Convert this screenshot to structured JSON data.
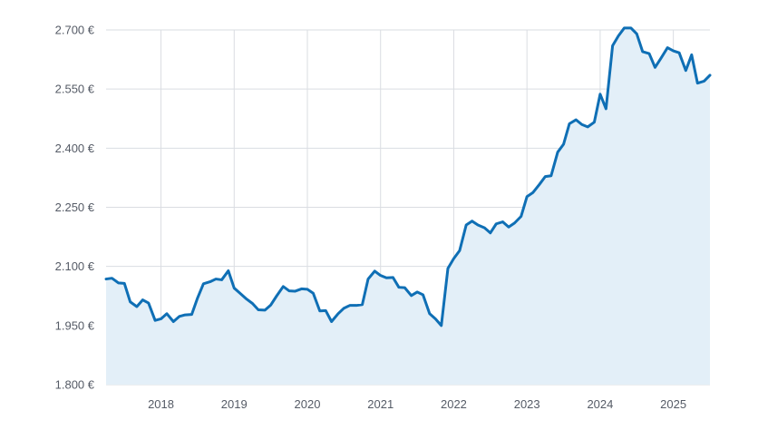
{
  "chart_data": {
    "type": "area",
    "title": "",
    "xlabel": "",
    "ylabel": "",
    "y_tick_labels": [
      "1.800 €",
      "1.950 €",
      "2.100 €",
      "2.250 €",
      "2.400 €",
      "2.550 €",
      "2.700 €"
    ],
    "y_ticks": [
      1800,
      1950,
      2100,
      2250,
      2400,
      2550,
      2700
    ],
    "x_tick_labels": [
      "2018",
      "2019",
      "2020",
      "2021",
      "2022",
      "2023",
      "2024",
      "2025"
    ],
    "x_ticks": [
      2018,
      2019,
      2020,
      2021,
      2022,
      2023,
      2024,
      2025
    ],
    "ylim": [
      1800,
      2700
    ],
    "xlim": [
      2017.25,
      2025.5
    ],
    "grid": true,
    "colors": {
      "line": "#0f6fb5",
      "fill": "#e3eff8"
    },
    "series": [
      {
        "x": [
          2017.25,
          2017.33,
          2017.42,
          2017.5,
          2017.58,
          2017.67,
          2017.75,
          2017.83,
          2017.92,
          2018.0,
          2018.08,
          2018.17,
          2018.25,
          2018.33,
          2018.42,
          2018.5,
          2018.58,
          2018.67,
          2018.75,
          2018.83,
          2018.92,
          2019.0,
          2019.08,
          2019.17,
          2019.25,
          2019.33,
          2019.42,
          2019.5,
          2019.58,
          2019.67,
          2019.75,
          2019.83,
          2019.92,
          2020.0,
          2020.08,
          2020.17,
          2020.25,
          2020.33,
          2020.42,
          2020.5,
          2020.58,
          2020.67,
          2020.75,
          2020.83,
          2020.92,
          2021.0,
          2021.08,
          2021.17,
          2021.25,
          2021.33,
          2021.42,
          2021.5,
          2021.58,
          2021.67,
          2021.75,
          2021.83,
          2021.92,
          2022.0,
          2022.08,
          2022.17,
          2022.25,
          2022.33,
          2022.42,
          2022.5,
          2022.58,
          2022.67,
          2022.75,
          2022.83,
          2022.92,
          2023.0,
          2023.08,
          2023.17,
          2023.25,
          2023.33,
          2023.42,
          2023.5,
          2023.58,
          2023.67,
          2023.75,
          2023.83,
          2023.92,
          2024.0,
          2024.08,
          2024.17,
          2024.25,
          2024.33,
          2024.42,
          2024.5,
          2024.58,
          2024.67,
          2024.75,
          2024.83,
          2024.92,
          2025.0,
          2025.08,
          2025.17,
          2025.25,
          2025.33,
          2025.42,
          2025.5
        ],
        "y": [
          2068,
          2070,
          2058,
          2057,
          2010,
          1998,
          2015,
          2007,
          1963,
          1967,
          1980,
          1960,
          1973,
          1977,
          1978,
          2020,
          2056,
          2061,
          2068,
          2066,
          2089,
          2045,
          2032,
          2017,
          2006,
          1990,
          1989,
          2002,
          2025,
          2049,
          2038,
          2037,
          2043,
          2042,
          2032,
          1987,
          1988,
          1960,
          1980,
          1994,
          2001,
          2001,
          2003,
          2068,
          2088,
          2077,
          2071,
          2072,
          2047,
          2046,
          2026,
          2035,
          2028,
          1980,
          1967,
          1950,
          2095,
          2120,
          2140,
          2205,
          2215,
          2205,
          2198,
          2185,
          2208,
          2213,
          2200,
          2210,
          2227,
          2277,
          2287,
          2308,
          2328,
          2330,
          2390,
          2410,
          2462,
          2472,
          2460,
          2454,
          2466,
          2537,
          2500,
          2660,
          2685,
          2705,
          2705,
          2690,
          2645,
          2640,
          2605,
          2628,
          2655,
          2647,
          2642,
          2597,
          2637,
          2565,
          2570,
          2585
        ]
      }
    ]
  }
}
